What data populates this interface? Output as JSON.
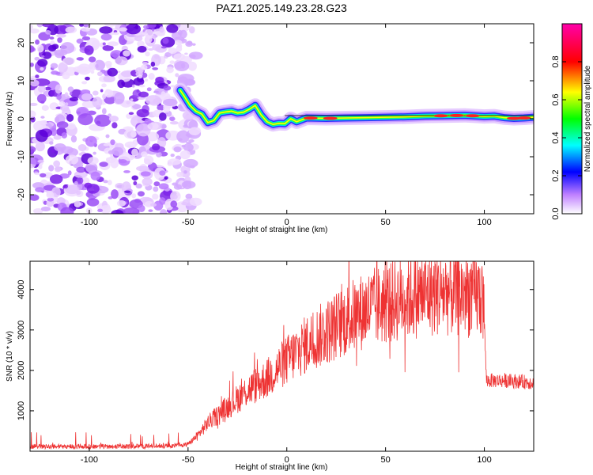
{
  "title": "PAZ1.2025.149.23.28.G23",
  "chart_data": [
    {
      "type": "heatmap",
      "name": "spectrogram",
      "xlabel": "Height of straight line (km)",
      "ylabel": "Frequency (Hz)",
      "xlim": [
        -130,
        125
      ],
      "ylim": [
        -25,
        25
      ],
      "xticks": [
        -100,
        -50,
        0,
        50,
        100
      ],
      "yticks": [
        -20,
        -10,
        0,
        10,
        20
      ],
      "noise_region_x": [
        -130,
        -50
      ],
      "ridge": {
        "x": [
          -54,
          -52,
          -49,
          -46,
          -43,
          -40,
          -37,
          -34,
          -31,
          -28,
          -25,
          -22,
          -19,
          -16,
          -13,
          -10,
          -7,
          -4,
          -1,
          2,
          5,
          10,
          20,
          30,
          40,
          50,
          60,
          70,
          80,
          90,
          100,
          105,
          110,
          115,
          120,
          125
        ],
        "y": [
          7.5,
          6,
          3.5,
          2,
          1.2,
          -1,
          -0.5,
          1.5,
          1.8,
          2,
          1.5,
          1.7,
          2.5,
          3.5,
          1,
          -0.8,
          -1.5,
          -1.2,
          -1.3,
          0,
          -0.8,
          0.2,
          0.1,
          0.2,
          0.3,
          0.4,
          0.5,
          0.7,
          0.8,
          0.9,
          0.6,
          0.7,
          0.3,
          0.1,
          0.2,
          0.4
        ]
      },
      "colorbar": {
        "label": "Normalized spectral amplitude",
        "range": [
          0,
          1
        ],
        "ticks": [
          "0.0",
          "0.2",
          "0.4",
          "0.6",
          "0.8"
        ]
      }
    },
    {
      "type": "line",
      "name": "snr",
      "xlabel": "Height of straight line (km)",
      "ylabel": "SNR (10 * v/v)",
      "xlim": [
        -130,
        125
      ],
      "ylim": [
        0,
        4700
      ],
      "xticks": [
        -100,
        -50,
        0,
        50,
        100
      ],
      "yticks": [
        1000,
        2000,
        3000,
        4000
      ],
      "color": "#ee3333",
      "envelope": {
        "x": [
          -130,
          -80,
          -60,
          -50,
          -45,
          -40,
          -30,
          -20,
          -10,
          0,
          10,
          20,
          30,
          40,
          50,
          60,
          70,
          80,
          90,
          99,
          100,
          101,
          110,
          125
        ],
        "y": [
          120,
          120,
          130,
          170,
          400,
          700,
          1100,
          1500,
          1800,
          2250,
          2650,
          2950,
          3250,
          3500,
          3650,
          3800,
          3900,
          3950,
          3900,
          3850,
          3300,
          1750,
          1750,
          1700
        ]
      }
    }
  ]
}
